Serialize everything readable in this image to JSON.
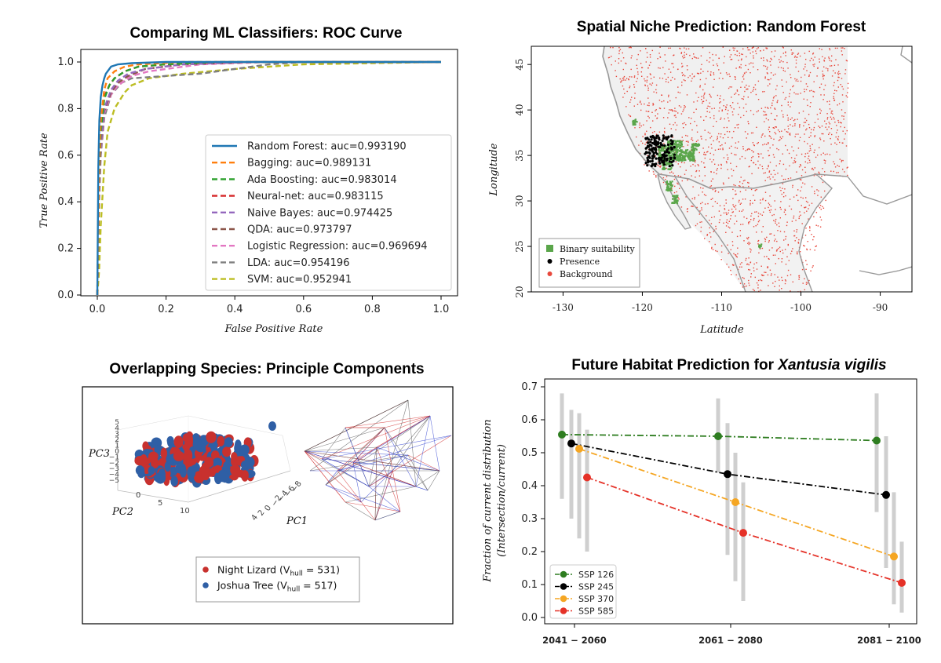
{
  "chart_data": [
    {
      "type": "line",
      "title": "Comparing ML Classifiers: ROC Curve",
      "xlabel": "False Positive Rate",
      "ylabel": "True Positive Rate",
      "xlim": [
        0,
        1
      ],
      "ylim": [
        0,
        1
      ],
      "xticks": [
        "0.0",
        "0.2",
        "0.4",
        "0.6",
        "0.8",
        "1.0"
      ],
      "yticks": [
        "0.0",
        "0.2",
        "0.4",
        "0.6",
        "0.8",
        "1.0"
      ],
      "grid": false,
      "legend_position": "lower-right",
      "series": [
        {
          "name": "Random Forest: auc=0.993190",
          "color": "#1f77b4",
          "style": "solid",
          "x": [
            0,
            0.003,
            0.006,
            0.01,
            0.015,
            0.02,
            0.025,
            0.04,
            0.06,
            0.1,
            0.2,
            1.0
          ],
          "y": [
            0,
            0.55,
            0.75,
            0.85,
            0.9,
            0.93,
            0.95,
            0.98,
            0.99,
            0.995,
            1.0,
            1.0
          ]
        },
        {
          "name": "Bagging: auc=0.989131",
          "color": "#ff7f0e",
          "style": "dashed",
          "x": [
            0,
            0.005,
            0.01,
            0.02,
            0.03,
            0.05,
            0.08,
            0.12,
            0.25,
            1.0
          ],
          "y": [
            0,
            0.55,
            0.75,
            0.88,
            0.93,
            0.96,
            0.98,
            0.99,
            1.0,
            1.0
          ]
        },
        {
          "name": "Ada Boosting: auc=0.983014",
          "color": "#2ca02c",
          "style": "dashed",
          "x": [
            0,
            0.005,
            0.01,
            0.02,
            0.035,
            0.05,
            0.08,
            0.12,
            0.2,
            0.35,
            1.0
          ],
          "y": [
            0,
            0.5,
            0.7,
            0.84,
            0.9,
            0.93,
            0.96,
            0.98,
            0.99,
            1.0,
            1.0
          ]
        },
        {
          "name": "Neural-net: auc=0.983115",
          "color": "#d62728",
          "style": "dashed",
          "x": [
            0,
            0.005,
            0.01,
            0.02,
            0.035,
            0.05,
            0.08,
            0.12,
            0.2,
            0.35,
            1.0
          ],
          "y": [
            0,
            0.5,
            0.72,
            0.85,
            0.9,
            0.93,
            0.96,
            0.98,
            0.99,
            1.0,
            1.0
          ]
        },
        {
          "name": "Naive Bayes: auc=0.974425",
          "color": "#9467bd",
          "style": "dashed",
          "x": [
            0,
            0.005,
            0.01,
            0.02,
            0.04,
            0.06,
            0.09,
            0.14,
            0.25,
            0.45,
            1.0
          ],
          "y": [
            0,
            0.45,
            0.65,
            0.8,
            0.88,
            0.92,
            0.95,
            0.97,
            0.99,
            1.0,
            1.0
          ]
        },
        {
          "name": "QDA: auc=0.973797",
          "color": "#8c564b",
          "style": "dashed",
          "x": [
            0,
            0.005,
            0.01,
            0.02,
            0.04,
            0.06,
            0.09,
            0.14,
            0.25,
            0.45,
            1.0
          ],
          "y": [
            0,
            0.44,
            0.64,
            0.79,
            0.87,
            0.91,
            0.94,
            0.97,
            0.99,
            1.0,
            1.0
          ]
        },
        {
          "name": "Logistic Regression: auc=0.969694",
          "color": "#e377c2",
          "style": "dashed",
          "x": [
            0,
            0.005,
            0.01,
            0.02,
            0.04,
            0.06,
            0.1,
            0.15,
            0.3,
            0.5,
            1.0
          ],
          "y": [
            0,
            0.42,
            0.62,
            0.78,
            0.86,
            0.9,
            0.94,
            0.96,
            0.99,
            1.0,
            1.0
          ]
        },
        {
          "name": "LDA: auc=0.954196",
          "color": "#7f7f7f",
          "style": "dashed",
          "x": [
            0,
            0.005,
            0.01,
            0.02,
            0.04,
            0.07,
            0.1,
            0.2,
            0.3,
            0.4,
            0.5,
            0.6,
            1.0
          ],
          "y": [
            0,
            0.4,
            0.6,
            0.76,
            0.86,
            0.91,
            0.93,
            0.94,
            0.95,
            0.97,
            0.99,
            1.0,
            1.0
          ]
        },
        {
          "name": "SVM: auc=0.952941",
          "color": "#bcbd22",
          "style": "dashed",
          "x": [
            0,
            0.005,
            0.01,
            0.02,
            0.03,
            0.05,
            0.08,
            0.1,
            0.15,
            0.25,
            0.4,
            0.6,
            1.0
          ],
          "y": [
            0,
            0.1,
            0.3,
            0.55,
            0.7,
            0.8,
            0.87,
            0.9,
            0.93,
            0.95,
            0.97,
            0.99,
            1.0
          ]
        }
      ]
    },
    {
      "type": "scatter",
      "title": "Spatial Niche Prediction: Random Forest",
      "xlabel": "Latitude",
      "ylabel": "Longitude",
      "xlim": [
        -134,
        -86
      ],
      "ylim": [
        20,
        47
      ],
      "xticks": [
        "-130",
        "-120",
        "-110",
        "-100",
        "-90"
      ],
      "yticks": [
        "20",
        "25",
        "30",
        "35",
        "40",
        "45"
      ],
      "legend_position": "lower-left",
      "legend": [
        {
          "label": "Binary suitability",
          "color": "#5aa64a",
          "marker": "square"
        },
        {
          "label": "Presence",
          "color": "#000000",
          "marker": "circle"
        },
        {
          "label": "Background",
          "color": "#e8483c",
          "marker": "circle"
        }
      ]
    },
    {
      "type": "scatter",
      "title": "Overlapping Species: Principle Components",
      "axes": {
        "x": "PC1",
        "y": "PC2",
        "z": "PC3"
      },
      "z_ticks": [
        "5",
        "4",
        "3",
        "2",
        "1",
        "0",
        "−1",
        "−2",
        "−3",
        "−4",
        "−5"
      ],
      "pc2_ticks": [
        "0",
        "5",
        "10"
      ],
      "pc1_ticks": [
        "4",
        "2",
        "0",
        "−2",
        "−4",
        "−6",
        "−8"
      ],
      "legend": [
        {
          "label": "Night Lizard (V",
          "sub": "hull",
          "value": " =  531)",
          "color": "#c8312e"
        },
        {
          "label": "Joshua Tree  (V",
          "sub": "hull",
          "value": " =  517)",
          "color": "#2f5fa5"
        }
      ]
    },
    {
      "type": "line",
      "title_prefix": "Future Habitat Prediction for ",
      "title_italic": "Xantusia vigilis",
      "ylabel_line1": "Fraction of current distribution",
      "ylabel_line2": "(Intersection/current)",
      "categories": [
        "2041 − 2060",
        "2061 − 2080",
        "2081 − 2100"
      ],
      "ylim": [
        0,
        0.7
      ],
      "yticks": [
        "0.0",
        "0.1",
        "0.2",
        "0.3",
        "0.4",
        "0.5",
        "0.6",
        "0.7"
      ],
      "legend_position": "lower-left",
      "series": [
        {
          "name": "SSP 126",
          "color": "#2e7d20",
          "values": [
            0.555,
            0.55,
            0.537
          ],
          "err_low": [
            0.36,
            0.44,
            0.32
          ],
          "err_high": [
            0.68,
            0.665,
            0.68
          ]
        },
        {
          "name": "SSP 245",
          "color": "#000000",
          "values": [
            0.528,
            0.435,
            0.372
          ],
          "err_low": [
            0.3,
            0.19,
            0.15
          ],
          "err_high": [
            0.63,
            0.59,
            0.55
          ]
        },
        {
          "name": "SSP 370",
          "color": "#f5a623",
          "values": [
            0.512,
            0.35,
            0.185
          ],
          "err_low": [
            0.24,
            0.11,
            0.04
          ],
          "err_high": [
            0.62,
            0.5,
            0.38
          ]
        },
        {
          "name": "SSP 585",
          "color": "#e53228",
          "values": [
            0.425,
            0.257,
            0.105
          ],
          "err_low": [
            0.2,
            0.05,
            0.015
          ],
          "err_high": [
            0.57,
            0.41,
            0.23
          ]
        }
      ]
    }
  ]
}
